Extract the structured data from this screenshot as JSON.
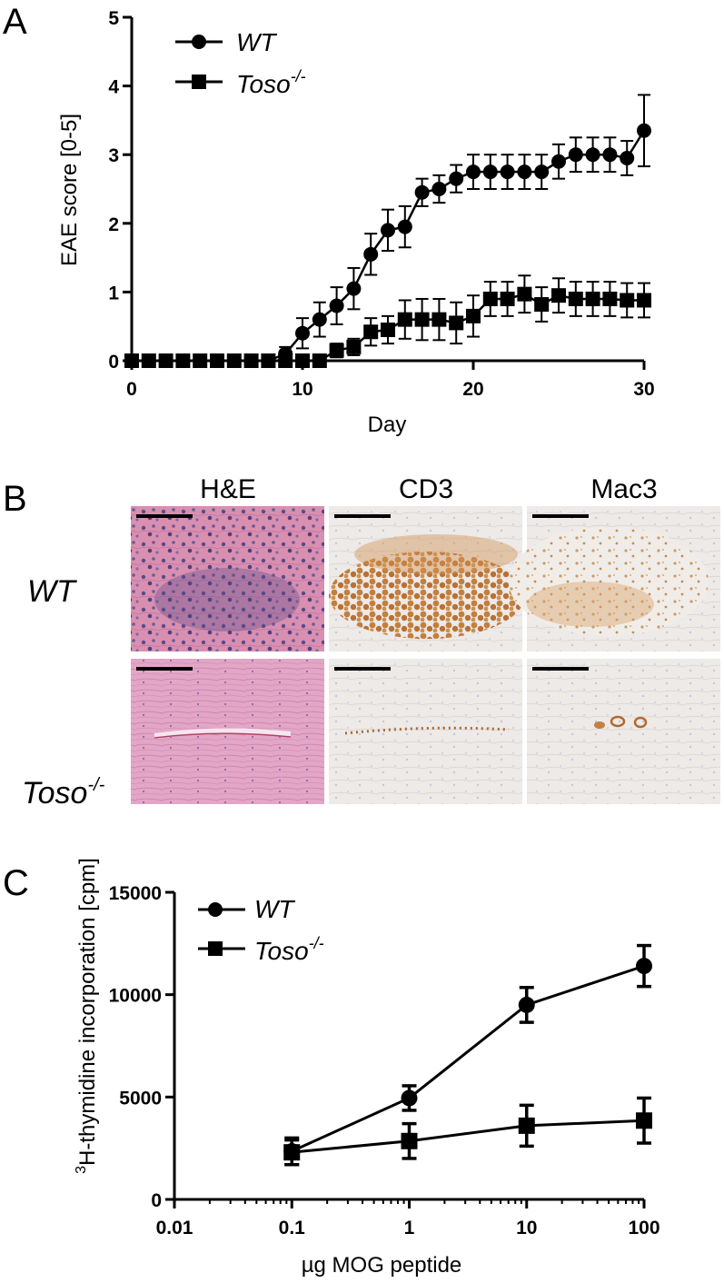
{
  "panels": {
    "a": "A",
    "b": "B",
    "c": "C"
  },
  "chart_data": [
    {
      "type": "line",
      "title": "",
      "xlabel": "Day",
      "ylabel": "EAE score [0-5]",
      "xlim": [
        0,
        30
      ],
      "ylim": [
        0,
        5
      ],
      "xticks": [
        "0",
        "10",
        "20",
        "30"
      ],
      "yticks": [
        "0",
        "1",
        "2",
        "3",
        "4",
        "5"
      ],
      "legend_position": "top-left",
      "series": [
        {
          "name": "WT",
          "marker": "circle",
          "x": [
            0,
            1,
            2,
            3,
            4,
            5,
            6,
            7,
            8,
            9,
            10,
            11,
            12,
            13,
            14,
            15,
            16,
            17,
            18,
            19,
            20,
            21,
            22,
            23,
            24,
            25,
            26,
            27,
            28,
            29,
            30
          ],
          "y": [
            0,
            0,
            0,
            0,
            0,
            0,
            0,
            0,
            0,
            0.1,
            0.4,
            0.6,
            0.8,
            1.05,
            1.55,
            1.9,
            1.95,
            2.45,
            2.5,
            2.65,
            2.75,
            2.75,
            2.75,
            2.75,
            2.75,
            2.9,
            3.0,
            3.0,
            3.0,
            2.95,
            3.35
          ],
          "err": [
            0,
            0,
            0,
            0,
            0,
            0,
            0,
            0,
            0,
            0.1,
            0.22,
            0.25,
            0.27,
            0.3,
            0.3,
            0.3,
            0.3,
            0.2,
            0.2,
            0.2,
            0.25,
            0.25,
            0.25,
            0.25,
            0.25,
            0.25,
            0.25,
            0.25,
            0.25,
            0.25,
            0.52
          ]
        },
        {
          "name": "Toso",
          "superscript": "-/-",
          "marker": "square",
          "x": [
            0,
            1,
            2,
            3,
            4,
            5,
            6,
            7,
            8,
            9,
            10,
            11,
            12,
            13,
            14,
            15,
            16,
            17,
            18,
            19,
            20,
            21,
            22,
            23,
            24,
            25,
            26,
            27,
            28,
            29,
            30
          ],
          "y": [
            0,
            0,
            0,
            0,
            0,
            0,
            0,
            0,
            0,
            0,
            0,
            0,
            0.15,
            0.2,
            0.42,
            0.45,
            0.6,
            0.6,
            0.6,
            0.55,
            0.65,
            0.9,
            0.9,
            0.97,
            0.82,
            0.95,
            0.9,
            0.9,
            0.9,
            0.88,
            0.88
          ],
          "err": [
            0,
            0,
            0,
            0,
            0,
            0,
            0,
            0,
            0,
            0,
            0,
            0,
            0.1,
            0.12,
            0.2,
            0.2,
            0.28,
            0.3,
            0.3,
            0.3,
            0.3,
            0.25,
            0.25,
            0.27,
            0.25,
            0.25,
            0.25,
            0.25,
            0.25,
            0.25,
            0.25
          ]
        }
      ]
    },
    {
      "type": "line",
      "title": "",
      "xlabel": "µg MOG peptide",
      "ylabel_sup": "3",
      "ylabel": "H-thymidine incorporation [cpm]",
      "xscale": "log",
      "xlim": [
        0.01,
        100
      ],
      "ylim": [
        0,
        15000
      ],
      "xticks": [
        "0.01",
        "0.1",
        "1",
        "10",
        "100"
      ],
      "yticks": [
        "0",
        "5000",
        "10000",
        "15000"
      ],
      "legend_position": "top-left",
      "series": [
        {
          "name": "WT",
          "marker": "circle",
          "x": [
            0.1,
            1,
            10,
            100
          ],
          "y": [
            2350,
            4950,
            9500,
            11400
          ],
          "err": [
            650,
            600,
            850,
            1000
          ]
        },
        {
          "name": "Toso",
          "superscript": "-/-",
          "marker": "square",
          "x": [
            0.1,
            1,
            10,
            100
          ],
          "y": [
            2300,
            2850,
            3600,
            3850
          ],
          "err": [
            600,
            850,
            1000,
            1100
          ]
        }
      ]
    }
  ],
  "histology": {
    "columns": [
      "H&E",
      "CD3",
      "Mac3"
    ],
    "rows": [
      {
        "label": "WT",
        "superscript": ""
      },
      {
        "label": "Toso",
        "superscript": "-/-"
      }
    ]
  }
}
